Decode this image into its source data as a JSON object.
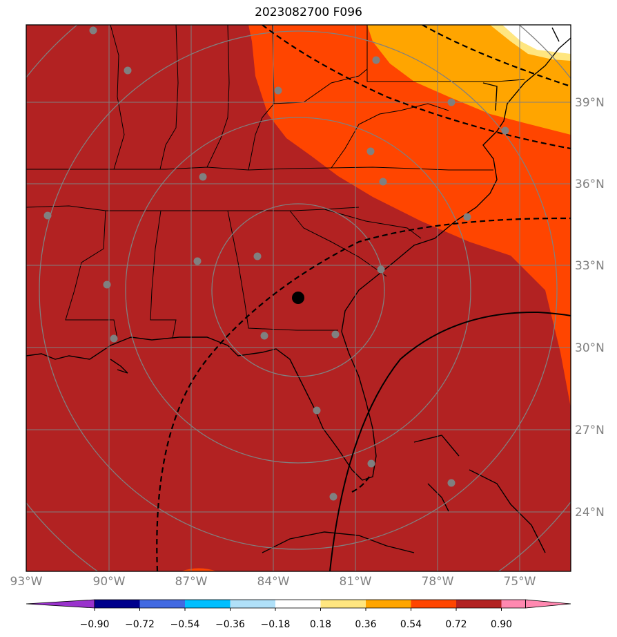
{
  "title": "2023082700 F096",
  "colors": {
    "shade_high": "#b22222",
    "shade_72": "#ff4500",
    "shade_54": "#ffa500",
    "shade_36": "#ffe680",
    "grid": "#808080",
    "station": "#808080"
  },
  "map": {
    "lon_labels": [
      "93°W",
      "90°W",
      "87°W",
      "84°W",
      "81°W",
      "78°W",
      "75°W"
    ],
    "lat_labels": [
      "39°N",
      "36°N",
      "33°N",
      "30°N",
      "27°N",
      "24°N"
    ]
  },
  "colorbar": {
    "ticks": [
      "−0.90",
      "−0.72",
      "−0.54",
      "−0.36",
      "−0.18",
      "0.18",
      "0.36",
      "0.54",
      "0.72",
      "0.90"
    ],
    "colors": [
      "#9932cc",
      "#00008b",
      "#4169e1",
      "#00bfff",
      "#b0e0f8",
      "#ffffff",
      "#ffe680",
      "#ffa500",
      "#ff4500",
      "#b22222",
      "#ff88b0",
      "#ff88b0"
    ]
  }
}
